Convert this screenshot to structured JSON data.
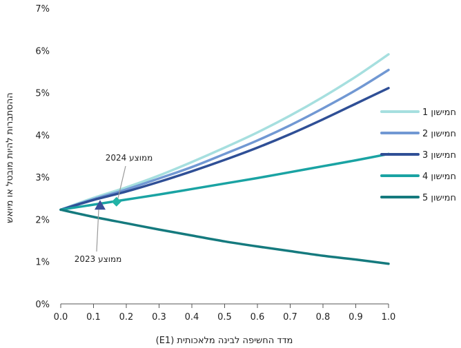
{
  "chart_data": {
    "type": "line",
    "title": "",
    "xlabel": "מדד החשיפה לבינה מלאכותית (E1)",
    "ylabel": "ההסתברות להיות מובטל או מיואש",
    "xlim": [
      0,
      1
    ],
    "ylim": [
      0,
      7
    ],
    "x_ticks": [
      0.0,
      0.1,
      0.2,
      0.3,
      0.4,
      0.5,
      0.6,
      0.7,
      0.8,
      0.9,
      1.0
    ],
    "x_tick_labels": [
      "0.0",
      "0.1",
      "0.2",
      "0.3",
      "0.4",
      "0.5",
      "0.6",
      "0.7",
      "0.8",
      "0.9",
      "1.0"
    ],
    "y_ticks": [
      0,
      1,
      2,
      3,
      4,
      5,
      6,
      7
    ],
    "y_tick_labels": [
      "0%",
      "1%",
      "2%",
      "3%",
      "4%",
      "5%",
      "6%",
      "7%"
    ],
    "grid": false,
    "legend_position": "right",
    "x": [
      0.0,
      0.1,
      0.2,
      0.3,
      0.4,
      0.5,
      0.6,
      0.7,
      0.8,
      0.9,
      1.0
    ],
    "series": [
      {
        "name": "חמישון 1",
        "color": "#a6dfdf",
        "values": [
          2.23,
          2.51,
          2.76,
          3.04,
          3.36,
          3.7,
          4.06,
          4.46,
          4.9,
          5.38,
          5.91
        ]
      },
      {
        "name": "חמישון 2",
        "color": "#7198d3",
        "values": [
          2.23,
          2.48,
          2.71,
          2.97,
          3.24,
          3.55,
          3.87,
          4.23,
          4.63,
          5.06,
          5.54
        ]
      },
      {
        "name": "חמישון 3",
        "color": "#2f4f96",
        "values": [
          2.23,
          2.46,
          2.66,
          2.89,
          3.14,
          3.41,
          3.7,
          4.02,
          4.37,
          4.74,
          5.11
        ]
      },
      {
        "name": "חמישון 4",
        "color": "#1aa3a3",
        "values": [
          2.23,
          2.35,
          2.47,
          2.59,
          2.72,
          2.85,
          2.98,
          3.12,
          3.26,
          3.4,
          3.55
        ]
      },
      {
        "name": "חמישון 5",
        "color": "#157a7e",
        "values": [
          2.23,
          2.06,
          1.91,
          1.76,
          1.62,
          1.48,
          1.36,
          1.25,
          1.14,
          1.05,
          0.95
        ]
      }
    ],
    "markers": [
      {
        "label": "ממוצע 2023",
        "shape": "triangle",
        "x": 0.12,
        "y": 2.33,
        "color": "#3b4f99"
      },
      {
        "label": "ממוצע 2024",
        "shape": "diamond",
        "x": 0.17,
        "y": 2.42,
        "color": "#22b3a6"
      }
    ]
  }
}
